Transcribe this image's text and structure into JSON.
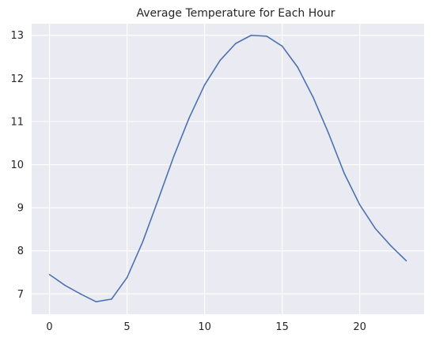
{
  "chart_data": {
    "type": "line",
    "title": "Average Temperature for Each Hour",
    "xlabel": "",
    "ylabel": "",
    "xlim": [
      -1.15,
      24.15
    ],
    "ylim": [
      6.53,
      13.27
    ],
    "xticks": [
      0,
      5,
      10,
      15,
      20
    ],
    "yticks": [
      7,
      8,
      9,
      10,
      11,
      12,
      13
    ],
    "grid": true,
    "legend": "none",
    "colors": {
      "background": "#eaeaf2",
      "grid": "#ffffff",
      "line": "#4c72b0"
    },
    "series": [
      {
        "x": [
          0,
          1,
          2,
          3,
          4,
          5,
          6,
          7,
          8,
          9,
          10,
          11,
          12,
          13,
          14,
          15,
          16,
          17,
          18,
          19,
          20,
          21,
          22,
          23
        ],
        "values": [
          7.45,
          7.2,
          7.0,
          6.82,
          6.88,
          7.38,
          8.2,
          9.18,
          10.18,
          11.08,
          11.85,
          12.42,
          12.81,
          13.0,
          12.98,
          12.75,
          12.26,
          11.56,
          10.72,
          9.8,
          9.07,
          8.52,
          8.12,
          7.77
        ]
      }
    ]
  }
}
